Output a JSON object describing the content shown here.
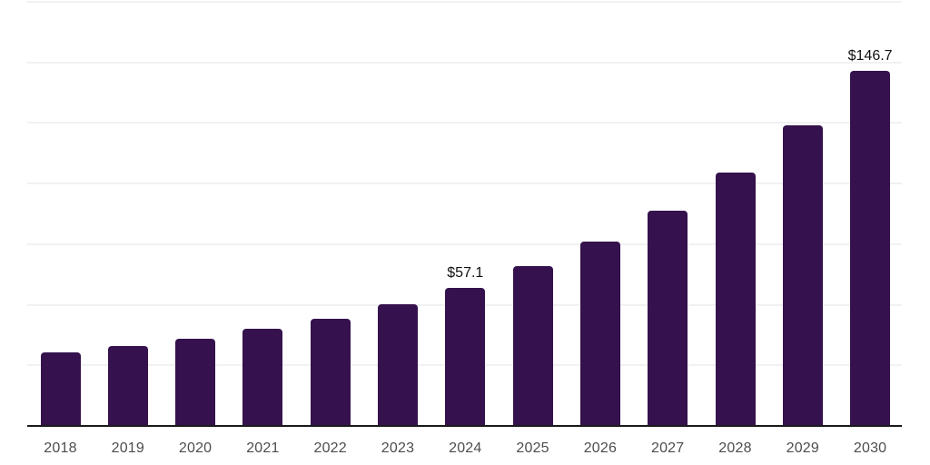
{
  "chart_data": {
    "type": "bar",
    "title": "",
    "xlabel": "",
    "ylabel": "",
    "categories": [
      "2018",
      "2019",
      "2020",
      "2021",
      "2022",
      "2023",
      "2024",
      "2025",
      "2026",
      "2027",
      "2028",
      "2029",
      "2030"
    ],
    "values": [
      30.2,
      33.0,
      35.9,
      40.0,
      44.2,
      50.2,
      57.1,
      65.8,
      76.2,
      88.7,
      104.5,
      123.9,
      146.7
    ],
    "data_labels": [
      {
        "category": "2024",
        "index": 6,
        "text": "$57.1"
      },
      {
        "category": "2030",
        "index": 12,
        "text": "$146.7"
      }
    ],
    "ylim": [
      0,
      175
    ],
    "gridline_step": 25,
    "grid": "horizontal",
    "y_tick_labels": "none",
    "legend": "none",
    "colors": {
      "bar": "#35124d",
      "axis_line": "#1a1a1a",
      "gridline": "#f1f1f4",
      "tick_label": "#4d4d4d",
      "data_label": "#111111",
      "background": "#ffffff"
    }
  }
}
